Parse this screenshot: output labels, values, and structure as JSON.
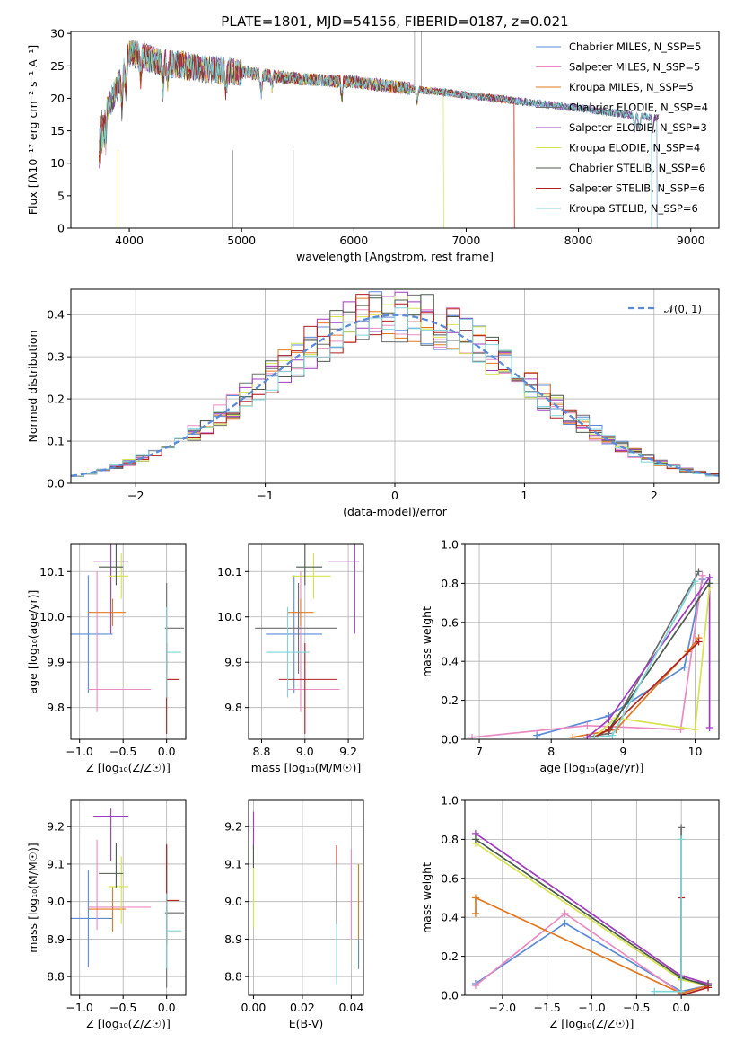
{
  "figure": {
    "title": "PLATE=1801, MJD=54156, FIBERID=0187, z=0.021"
  },
  "colors": {
    "Chabrier MILES": "#5b8bd6",
    "Salpeter MILES": "#e98bc2",
    "Kroupa MILES": "#e4781f",
    "Chabrier ELODIE": "#6d6d6d",
    "Salpeter ELODIE": "#a23bbf",
    "Kroupa ELODIE": "#d6e34f",
    "Chabrier STELIB": "#4b5a4b",
    "Salpeter STELIB": "#b21f1f",
    "Kroupa STELIB": "#7fd4d9"
  },
  "chart_data": [
    {
      "id": "spectrum",
      "type": "line",
      "title": "PLATE=1801, MJD=54156, FIBERID=0187, z=0.021",
      "xlabel": "wavelength [Angstrom, rest frame]",
      "ylabel": "Flux [fλ10⁻¹⁷ erg cm⁻² s⁻¹ A⁻¹]",
      "xlim": [
        3480,
        9250
      ],
      "ylim": [
        0,
        30.3
      ],
      "xticks": [
        "4000",
        "5000",
        "6000",
        "7000",
        "8000",
        "9000"
      ],
      "yticks": [
        "0",
        "5",
        "10",
        "15",
        "20",
        "25",
        "30"
      ],
      "legend_position": "top-right",
      "legend": [
        "Chabrier MILES, N_SSP=5",
        "Salpeter MILES, N_SSP=5",
        "Kroupa MILES, N_SSP=5",
        "Chabrier ELODIE, N_SSP=4",
        "Salpeter ELODIE, N_SSP=3",
        "Kroupa ELODIE, N_SSP=4",
        "Chabrier STELIB, N_SSP=6",
        "Salpeter STELIB, N_SSP=6",
        "Kroupa STELIB, N_SSP=6"
      ],
      "continuum": {
        "x": [
          3730,
          3850,
          3950,
          4000,
          4100,
          4300,
          4500,
          4700,
          5000,
          5500,
          6000,
          6500,
          7000,
          7500,
          8000,
          8500,
          8700
        ],
        "y": [
          16,
          20,
          24,
          27,
          26.5,
          25.5,
          25,
          24.5,
          24,
          23,
          22.5,
          21.5,
          20.5,
          19.5,
          18.5,
          17.3,
          17
        ]
      },
      "cutoffs": [
        {
          "series": "Kroupa ELODIE",
          "x_end": 6800
        },
        {
          "series": "Salpeter STELIB",
          "x_end": 7430
        },
        {
          "series": "Kroupa MILES",
          "x_end": 7430
        },
        {
          "series": "Kroupa STELIB",
          "x_end": 8650
        },
        {
          "series": "Chabrier MILES",
          "x_end": 8700
        }
      ]
    },
    {
      "id": "residuals",
      "type": "histogram",
      "xlabel": "(data-model)/error",
      "ylabel": "Normed distribution",
      "xlim": [
        -2.5,
        2.5
      ],
      "ylim": [
        0,
        0.46
      ],
      "xticks": [
        "−2",
        "−1",
        "0",
        "1",
        "2"
      ],
      "yticks": [
        "0.0",
        "0.1",
        "0.2",
        "0.3",
        "0.4"
      ],
      "bin_width": 0.1,
      "legend": [
        "𝒩(0, 1)"
      ],
      "legend_position": "top-right",
      "reference_curve": "gaussian N(0,1)"
    },
    {
      "id": "age_vs_Z",
      "type": "errorbar",
      "xlabel": "Z [log₁₀(Z/Z☉)]",
      "ylabel": "age  [log₁₀(age/yr)]",
      "xlim": [
        -1.1,
        0.22
      ],
      "ylim": [
        9.73,
        10.16
      ],
      "xticks": [
        "−1.0",
        "−0.5",
        "0.0"
      ],
      "yticks": [
        "9.8",
        "9.9",
        "10.0",
        "10.1"
      ],
      "points": [
        {
          "series": "Chabrier MILES",
          "x": -0.9,
          "xerr": [
            0.25,
            0.28
          ],
          "y": 9.962,
          "yerr": [
            0.13,
            0.13
          ]
        },
        {
          "series": "Salpeter MILES",
          "x": -0.8,
          "xerr": [
            0.1,
            0.62
          ],
          "y": 9.84,
          "yerr": [
            0.05,
            0.26
          ]
        },
        {
          "series": "Kroupa MILES",
          "x": -0.62,
          "xerr": [
            0.28,
            0.15
          ],
          "y": 10.01,
          "yerr": [
            0.03,
            0.03
          ]
        },
        {
          "series": "Chabrier ELODIE",
          "x": 0.0,
          "xerr": [
            0.02,
            0.2
          ],
          "y": 9.975,
          "yerr": [
            0.1,
            0.1
          ]
        },
        {
          "series": "Salpeter ELODIE",
          "x": -0.64,
          "xerr": [
            0.2,
            0.2
          ],
          "y": 10.123,
          "yerr": [
            0.16,
            0.15
          ]
        },
        {
          "series": "Kroupa ELODIE",
          "x": -0.52,
          "xerr": [
            0.15,
            0.08
          ],
          "y": 10.09,
          "yerr": [
            0.05,
            0.05
          ]
        },
        {
          "series": "Chabrier STELIB",
          "x": -0.58,
          "xerr": [
            0.2,
            0.08
          ],
          "y": 10.11,
          "yerr": [
            0.04,
            0.05
          ]
        },
        {
          "series": "Salpeter STELIB",
          "x": 0.0,
          "xerr": [
            0.0,
            0.15
          ],
          "y": 9.862,
          "yerr": [
            0.12,
            0.08
          ]
        },
        {
          "series": "Kroupa STELIB",
          "x": 0.0,
          "xerr": [
            0.0,
            0.17
          ],
          "y": 9.922,
          "yerr": [
            0.1,
            0.1
          ]
        }
      ]
    },
    {
      "id": "age_vs_mass",
      "type": "errorbar",
      "xlabel": "mass [log₁₀(M/M☉)]",
      "ylabel": "",
      "xlim": [
        8.74,
        9.27
      ],
      "ylim": [
        9.73,
        10.16
      ],
      "xticks": [
        "8.8",
        "9.0",
        "9.2"
      ],
      "yticks": [
        "9.8",
        "9.9",
        "10.0",
        "10.1"
      ],
      "points": [
        {
          "series": "Chabrier MILES",
          "x": 8.95,
          "xerr": [
            0.13,
            0.13
          ],
          "y": 9.962,
          "yerr": [
            0.13,
            0.13
          ]
        },
        {
          "series": "Salpeter MILES",
          "x": 8.98,
          "xerr": [
            0.06,
            0.18
          ],
          "y": 9.84,
          "yerr": [
            0.05,
            0.26
          ]
        },
        {
          "series": "Kroupa MILES",
          "x": 8.98,
          "xerr": [
            0.06,
            0.06
          ],
          "y": 10.01,
          "yerr": [
            0.03,
            0.03
          ]
        },
        {
          "series": "Chabrier ELODIE",
          "x": 8.97,
          "xerr": [
            0.2,
            0.18
          ],
          "y": 9.975,
          "yerr": [
            0.1,
            0.1
          ]
        },
        {
          "series": "Salpeter ELODIE",
          "x": 9.23,
          "xerr": [
            0.12,
            0.02
          ],
          "y": 10.123,
          "yerr": [
            0.16,
            0.15
          ]
        },
        {
          "series": "Kroupa ELODIE",
          "x": 9.04,
          "xerr": [
            0.1,
            0.08
          ],
          "y": 10.09,
          "yerr": [
            0.05,
            0.05
          ]
        },
        {
          "series": "Chabrier STELIB",
          "x": 9.0,
          "xerr": [
            0.04,
            0.08
          ],
          "y": 10.11,
          "yerr": [
            0.04,
            0.05
          ]
        },
        {
          "series": "Salpeter STELIB",
          "x": 9.0,
          "xerr": [
            0.12,
            0.15
          ],
          "y": 9.862,
          "yerr": [
            0.12,
            0.08
          ]
        },
        {
          "series": "Kroupa STELIB",
          "x": 8.92,
          "xerr": [
            0.1,
            0.1
          ],
          "y": 9.922,
          "yerr": [
            0.1,
            0.1
          ]
        }
      ]
    },
    {
      "id": "weight_vs_age",
      "type": "line",
      "xlabel": "age  [log₁₀(age/yr)]",
      "ylabel": "mass weight",
      "xlim": [
        6.8,
        10.33
      ],
      "ylim": [
        0,
        1
      ],
      "xticks": [
        "7",
        "8",
        "9",
        "10"
      ],
      "yticks": [
        "0.0",
        "0.2",
        "0.4",
        "0.6",
        "0.8",
        "1.0"
      ],
      "series": [
        {
          "name": "Chabrier MILES",
          "x": [
            7.8,
            8.8,
            9.85,
            10.1
          ],
          "y": [
            0.02,
            0.12,
            0.37,
            0.82
          ]
        },
        {
          "name": "Salpeter MILES",
          "x": [
            6.9,
            8.5,
            9.8,
            10.1
          ],
          "y": [
            0.01,
            0.07,
            0.05,
            0.84
          ]
        },
        {
          "name": "Kroupa MILES",
          "x": [
            8.3,
            8.9,
            9.9,
            10.05
          ],
          "y": [
            0.01,
            0.05,
            0.45,
            0.52
          ]
        },
        {
          "name": "Chabrier ELODIE",
          "x": [
            8.5,
            8.8,
            10.05
          ],
          "y": [
            0.01,
            0.03,
            0.86
          ]
        },
        {
          "name": "Salpeter ELODIE",
          "x": [
            8.5,
            8.8,
            10.2,
            10.2
          ],
          "y": [
            0.01,
            0.1,
            0.83,
            0.06
          ]
        },
        {
          "name": "Kroupa ELODIE",
          "x": [
            8.6,
            8.9,
            10.0,
            10.2
          ],
          "y": [
            0.01,
            0.11,
            0.05,
            0.78
          ]
        },
        {
          "name": "Chabrier STELIB",
          "x": [
            8.6,
            8.8,
            10.2
          ],
          "y": [
            0.01,
            0.05,
            0.8
          ]
        },
        {
          "name": "Salpeter STELIB",
          "x": [
            8.6,
            8.8,
            10.05
          ],
          "y": [
            0.01,
            0.05,
            0.5
          ]
        },
        {
          "name": "Kroupa STELIB",
          "x": [
            8.6,
            8.85,
            10.0
          ],
          "y": [
            0.01,
            0.02,
            0.81
          ]
        }
      ]
    },
    {
      "id": "mass_vs_Z",
      "type": "errorbar",
      "xlabel": "Z [log₁₀(Z/Z☉)]",
      "ylabel": "mass [log₁₀(M/M☉)]",
      "xlim": [
        -1.1,
        0.22
      ],
      "ylim": [
        8.75,
        9.27
      ],
      "xticks": [
        "−1.0",
        "−0.5",
        "0.0"
      ],
      "yticks": [
        "8.8",
        "8.9",
        "9.0",
        "9.1",
        "9.2"
      ],
      "points": [
        {
          "series": "Chabrier MILES",
          "x": -0.9,
          "xerr": [
            0.25,
            0.28
          ],
          "y": 8.955,
          "yerr": [
            0.13,
            0.13
          ]
        },
        {
          "series": "Salpeter MILES",
          "x": -0.8,
          "xerr": [
            0.1,
            0.62
          ],
          "y": 8.985,
          "yerr": [
            0.06,
            0.18
          ]
        },
        {
          "series": "Kroupa MILES",
          "x": -0.62,
          "xerr": [
            0.28,
            0.15
          ],
          "y": 8.98,
          "yerr": [
            0.06,
            0.06
          ]
        },
        {
          "series": "Chabrier ELODIE",
          "x": 0.0,
          "xerr": [
            0.02,
            0.2
          ],
          "y": 8.97,
          "yerr": [
            0.2,
            0.18
          ]
        },
        {
          "series": "Salpeter ELODIE",
          "x": -0.64,
          "xerr": [
            0.2,
            0.2
          ],
          "y": 9.228,
          "yerr": [
            0.12,
            0.02
          ]
        },
        {
          "series": "Kroupa ELODIE",
          "x": -0.52,
          "xerr": [
            0.15,
            0.08
          ],
          "y": 9.04,
          "yerr": [
            0.1,
            0.08
          ]
        },
        {
          "series": "Chabrier STELIB",
          "x": -0.58,
          "xerr": [
            0.2,
            0.08
          ],
          "y": 9.075,
          "yerr": [
            0.04,
            0.08
          ]
        },
        {
          "series": "Salpeter STELIB",
          "x": 0.0,
          "xerr": [
            0.0,
            0.15
          ],
          "y": 9.003,
          "yerr": [
            0.12,
            0.15
          ]
        },
        {
          "series": "Kroupa STELIB",
          "x": 0.0,
          "xerr": [
            0.0,
            0.17
          ],
          "y": 8.922,
          "yerr": [
            0.1,
            0.1
          ]
        }
      ]
    },
    {
      "id": "mass_vs_ebv",
      "type": "errorbar",
      "xlabel": "E(B-V)",
      "ylabel": "",
      "xlim": [
        -0.002,
        0.045
      ],
      "ylim": [
        8.75,
        9.27
      ],
      "xticks": [
        "0.00",
        "0.02",
        "0.04"
      ],
      "yticks": [
        "8.8",
        "8.9",
        "9.0",
        "9.1",
        "9.2"
      ],
      "points": [
        {
          "series": "Salpeter ELODIE",
          "x": 0.0,
          "y": 9.2,
          "yerr": [
            0.06,
            0.04
          ]
        },
        {
          "series": "Kroupa ELODIE",
          "x": 0.0,
          "y": 9.02,
          "yerr": [
            0.09,
            0.09
          ]
        },
        {
          "series": "Chabrier STELIB",
          "x": 0.0,
          "y": 9.12,
          "yerr": [
            0.03,
            0.03
          ]
        },
        {
          "series": "Salpeter STELIB",
          "x": 0.034,
          "y": 9.12,
          "yerr": [
            0.03,
            0.03
          ]
        },
        {
          "series": "Kroupa STELIB",
          "x": 0.034,
          "y": 8.92,
          "yerr": [
            0.14,
            0.14
          ]
        },
        {
          "series": "Chabrier ELODIE",
          "x": 0.034,
          "y": 9.02,
          "yerr": [
            0.08,
            0.08
          ]
        },
        {
          "series": "Salpeter MILES",
          "x": 0.04,
          "y": 9.02,
          "yerr": [
            0.12,
            0.12
          ]
        },
        {
          "series": "Kroupa MILES",
          "x": 0.043,
          "y": 9.0,
          "yerr": [
            0.1,
            0.1
          ]
        },
        {
          "series": "Chabrier MILES",
          "x": 0.043,
          "y": 8.86,
          "yerr": [
            0.04,
            0.04
          ]
        }
      ]
    },
    {
      "id": "weight_vs_Z",
      "type": "line",
      "xlabel": "Z [log₁₀(Z/Z☉)]",
      "ylabel": "mass weight",
      "xlim": [
        -2.42,
        0.42
      ],
      "ylim": [
        0,
        1
      ],
      "xticks": [
        "−2.0",
        "−1.5",
        "−1.0",
        "−0.5",
        "0.0"
      ],
      "yticks": [
        "0.0",
        "0.2",
        "0.4",
        "0.6",
        "0.8",
        "1.0"
      ],
      "series": [
        {
          "name": "Chabrier MILES",
          "x": [
            -2.3,
            -1.3,
            0.0,
            0.3
          ],
          "y": [
            0.06,
            0.37,
            0.02,
            0.05
          ]
        },
        {
          "name": "Salpeter MILES",
          "x": [
            -2.3,
            -1.3,
            0.0,
            0.3
          ],
          "y": [
            0.05,
            0.42,
            0.01,
            0.05
          ]
        },
        {
          "name": "Kroupa MILES",
          "x": [
            -2.3,
            -2.3,
            0.0,
            0.3
          ],
          "y": [
            0.42,
            0.5,
            0.01,
            0.05
          ]
        },
        {
          "name": "Chabrier ELODIE",
          "x": [
            0.0,
            0.0,
            0.3
          ],
          "y": [
            0.86,
            0.08,
            0.06
          ]
        },
        {
          "name": "Salpeter ELODIE",
          "x": [
            -2.3,
            0.0,
            0.3
          ],
          "y": [
            0.83,
            0.1,
            0.06
          ]
        },
        {
          "name": "Kroupa ELODIE",
          "x": [
            -2.3,
            0.0,
            0.3
          ],
          "y": [
            0.78,
            0.08,
            0.05
          ]
        },
        {
          "name": "Chabrier STELIB",
          "x": [
            -2.3,
            0.0,
            0.3
          ],
          "y": [
            0.8,
            0.09,
            0.05
          ]
        },
        {
          "name": "Salpeter STELIB",
          "x": [
            0.0,
            0.0,
            0.3
          ],
          "y": [
            0.5,
            0.0,
            0.04
          ]
        },
        {
          "name": "Kroupa STELIB",
          "x": [
            -0.3,
            0.0,
            0.0
          ],
          "y": [
            0.02,
            0.02,
            0.8
          ]
        }
      ]
    }
  ]
}
